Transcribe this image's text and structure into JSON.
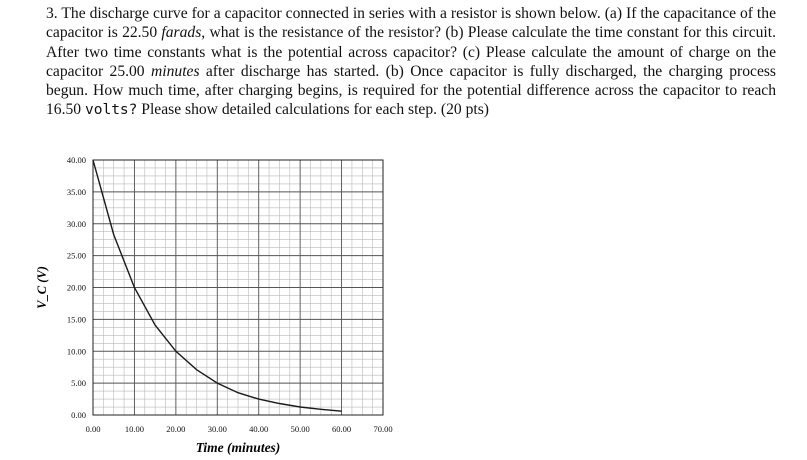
{
  "question": {
    "number": "3.",
    "s1": " The discharge curve for a capacitor connected in series with a resistor is shown below. (a) If the capacitance of the capacitor is ",
    "cap_value": "22.50",
    "cap_unit": "farads",
    "s2": ", what is the resistance of the resistor? (b) Please calculate the time constant for this circuit. After two time constants what is the potential across capacitor? (c) Please calculate the amount of charge on the capacitor ",
    "time_value": "25.00",
    "time_unit": "minutes",
    "s3": " after discharge has started. (b) Once capacitor is fully discharged, the charging process begun. How much time, after charging begins, is required for the potential difference across the capacitor to reach ",
    "volt_value": "16.50",
    "volt_unit": "volts?",
    "s4": " Please show detailed calculations for each step. (20 pts)"
  },
  "chart_data": {
    "type": "line",
    "xlabel": "Time (minutes)",
    "ylabel": "V_C (V)",
    "xlim": [
      0,
      70
    ],
    "ylim": [
      0,
      40
    ],
    "x_ticks": [
      "0.00",
      "10.00",
      "20.00",
      "30.00",
      "40.00",
      "50.00",
      "60.00",
      "70.00"
    ],
    "y_ticks": [
      "0.00",
      "5.00",
      "10.00",
      "15.00",
      "20.00",
      "25.00",
      "30.00",
      "35.00",
      "40.00"
    ],
    "grid": true,
    "series": [
      {
        "x": [
          0,
          5,
          10,
          15,
          20,
          25,
          30,
          35,
          40,
          45,
          50,
          55,
          60
        ],
        "y": [
          40,
          28.3,
          20,
          14.1,
          10,
          7.1,
          5,
          3.5,
          2.5,
          1.8,
          1.25,
          0.9,
          0.6
        ]
      }
    ]
  }
}
